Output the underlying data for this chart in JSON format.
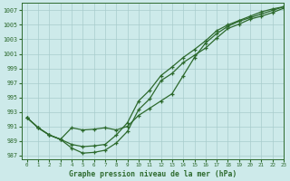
{
  "title": "Graphe pression niveau de la mer (hPa)",
  "background_color": "#cdeaea",
  "grid_color": "#a8cccc",
  "line_color": "#2d6a2d",
  "marker_color": "#2d6a2d",
  "xlim": [
    -0.5,
    23
  ],
  "ylim": [
    986.5,
    1008
  ],
  "yticks": [
    987,
    989,
    991,
    993,
    995,
    997,
    999,
    1001,
    1003,
    1005,
    1007
  ],
  "xticks": [
    0,
    1,
    2,
    3,
    4,
    5,
    6,
    7,
    8,
    9,
    10,
    11,
    12,
    13,
    14,
    15,
    16,
    17,
    18,
    19,
    20,
    21,
    22,
    23
  ],
  "series": [
    [
      992.2,
      990.8,
      989.8,
      989.2,
      988.0,
      987.3,
      987.4,
      987.7,
      988.7,
      990.3,
      993.3,
      994.8,
      997.3,
      998.3,
      999.8,
      1000.8,
      1001.8,
      1003.2,
      1004.5,
      1005.1,
      1005.8,
      1006.2,
      1006.7,
      1007.3
    ],
    [
      992.2,
      990.8,
      989.8,
      989.2,
      988.5,
      988.2,
      988.3,
      988.5,
      989.8,
      991.5,
      994.5,
      996.0,
      998.0,
      999.2,
      1000.5,
      1001.6,
      1002.8,
      1004.2,
      1005.0,
      1005.6,
      1006.2,
      1006.8,
      1007.2,
      1007.5
    ],
    [
      992.2,
      990.8,
      989.8,
      989.2,
      990.8,
      990.5,
      990.6,
      990.8,
      990.5,
      991.0,
      992.5,
      993.5,
      994.5,
      995.5,
      998.0,
      1000.5,
      1002.5,
      1003.8,
      1004.8,
      1005.5,
      1006.0,
      1006.5,
      1007.0,
      1007.5
    ]
  ]
}
